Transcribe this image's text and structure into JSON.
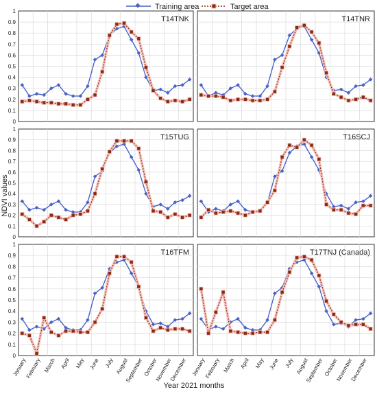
{
  "legend": {
    "items": [
      {
        "label": "Training area",
        "color": "#4a63c8",
        "marker": "diamond",
        "line": "solid"
      },
      {
        "label": "Target area",
        "color": "#8b2a14",
        "marker": "square",
        "line": "dotted"
      }
    ]
  },
  "ylabel": "NDVI values",
  "xlabel": "Year 2021 months",
  "chart_data": {
    "type": "line",
    "x_labels": [
      "January",
      "February",
      "March",
      "April",
      "May",
      "June",
      "July",
      "August",
      "September",
      "October",
      "November",
      "December"
    ],
    "y_ticks": [
      "0",
      "0.1",
      "0.2",
      "0.3",
      "0.4",
      "0.5",
      "0.6",
      "0.7",
      "0.8",
      "0.9",
      "1"
    ],
    "ylim": [
      0,
      1
    ],
    "points_per_panel": 24,
    "grid": true,
    "legend_position": "top",
    "panels": [
      {
        "title": "T14TNK",
        "series": [
          {
            "name": "Training area",
            "values": [
              0.33,
              0.23,
              0.25,
              0.24,
              0.3,
              0.33,
              0.25,
              0.23,
              0.23,
              0.32,
              0.56,
              0.6,
              0.78,
              0.84,
              0.86,
              0.74,
              0.62,
              0.4,
              0.28,
              0.29,
              0.26,
              0.32,
              0.33,
              0.38
            ]
          },
          {
            "name": "Target area",
            "values": [
              0.18,
              0.19,
              0.18,
              0.17,
              0.17,
              0.16,
              0.16,
              0.15,
              0.15,
              0.2,
              0.24,
              0.45,
              0.78,
              0.88,
              0.89,
              0.81,
              0.75,
              0.49,
              0.28,
              0.21,
              0.18,
              0.19,
              0.18,
              0.2
            ]
          }
        ]
      },
      {
        "title": "T14TNR",
        "series": [
          {
            "name": "Training area",
            "values": [
              0.33,
              0.23,
              0.26,
              0.24,
              0.3,
              0.33,
              0.25,
              0.23,
              0.23,
              0.32,
              0.56,
              0.6,
              0.78,
              0.84,
              0.86,
              0.74,
              0.62,
              0.4,
              0.28,
              0.29,
              0.26,
              0.32,
              0.33,
              0.38
            ]
          },
          {
            "name": "Target area",
            "values": [
              0.24,
              0.23,
              0.23,
              0.22,
              0.19,
              0.2,
              0.2,
              0.19,
              0.19,
              0.2,
              0.27,
              0.49,
              0.68,
              0.85,
              0.87,
              0.81,
              0.71,
              0.44,
              0.25,
              0.22,
              0.19,
              0.2,
              0.22,
              0.19
            ]
          }
        ]
      },
      {
        "title": "T15TUG",
        "series": [
          {
            "name": "Training area",
            "values": [
              0.33,
              0.25,
              0.27,
              0.25,
              0.3,
              0.33,
              0.25,
              0.23,
              0.23,
              0.32,
              0.56,
              0.61,
              0.78,
              0.84,
              0.86,
              0.74,
              0.62,
              0.4,
              0.28,
              0.3,
              0.26,
              0.32,
              0.34,
              0.38
            ]
          },
          {
            "name": "Target area",
            "values": [
              0.21,
              0.16,
              0.1,
              0.14,
              0.2,
              0.18,
              0.16,
              0.2,
              0.21,
              0.24,
              0.4,
              0.63,
              0.79,
              0.89,
              0.89,
              0.89,
              0.82,
              0.51,
              0.24,
              0.23,
              0.18,
              0.21,
              0.18,
              0.2
            ]
          }
        ]
      },
      {
        "title": "T16SCJ",
        "series": [
          {
            "name": "Training area",
            "values": [
              0.33,
              0.23,
              0.26,
              0.24,
              0.3,
              0.33,
              0.25,
              0.23,
              0.24,
              0.32,
              0.56,
              0.61,
              0.78,
              0.84,
              0.86,
              0.74,
              0.62,
              0.4,
              0.28,
              0.29,
              0.26,
              0.32,
              0.33,
              0.38
            ]
          },
          {
            "name": "Target area",
            "values": [
              0.18,
              0.25,
              0.22,
              0.23,
              0.24,
              0.22,
              0.2,
              0.23,
              0.24,
              0.32,
              0.43,
              0.74,
              0.85,
              0.83,
              0.9,
              0.85,
              0.72,
              0.3,
              0.25,
              0.25,
              0.22,
              0.21,
              0.29,
              0.29
            ]
          }
        ]
      },
      {
        "title": "T16TFM",
        "series": [
          {
            "name": "Training area",
            "values": [
              0.33,
              0.23,
              0.26,
              0.24,
              0.3,
              0.33,
              0.25,
              0.23,
              0.23,
              0.32,
              0.56,
              0.61,
              0.78,
              0.84,
              0.86,
              0.74,
              0.62,
              0.4,
              0.28,
              0.29,
              0.26,
              0.32,
              0.33,
              0.38
            ]
          },
          {
            "name": "Target area",
            "values": [
              0.2,
              0.18,
              0.02,
              0.34,
              0.21,
              0.18,
              0.22,
              0.22,
              0.21,
              0.21,
              0.3,
              0.42,
              0.74,
              0.89,
              0.89,
              0.84,
              0.62,
              0.34,
              0.22,
              0.25,
              0.23,
              0.24,
              0.24,
              0.22
            ]
          }
        ]
      },
      {
        "title": "T17TNJ (Canada)",
        "series": [
          {
            "name": "Training area",
            "values": [
              0.33,
              0.23,
              0.26,
              0.24,
              0.3,
              0.33,
              0.25,
              0.23,
              0.23,
              0.32,
              0.56,
              0.61,
              0.78,
              0.84,
              0.86,
              0.74,
              0.62,
              0.4,
              0.28,
              0.29,
              0.26,
              0.32,
              0.33,
              0.38
            ]
          },
          {
            "name": "Target area",
            "values": [
              0.6,
              0.2,
              0.39,
              0.57,
              0.22,
              0.21,
              0.2,
              0.2,
              0.21,
              0.21,
              0.32,
              0.57,
              0.75,
              0.88,
              0.89,
              0.86,
              0.72,
              0.49,
              0.37,
              0.3,
              0.27,
              0.28,
              0.28,
              0.24
            ]
          }
        ]
      }
    ]
  }
}
